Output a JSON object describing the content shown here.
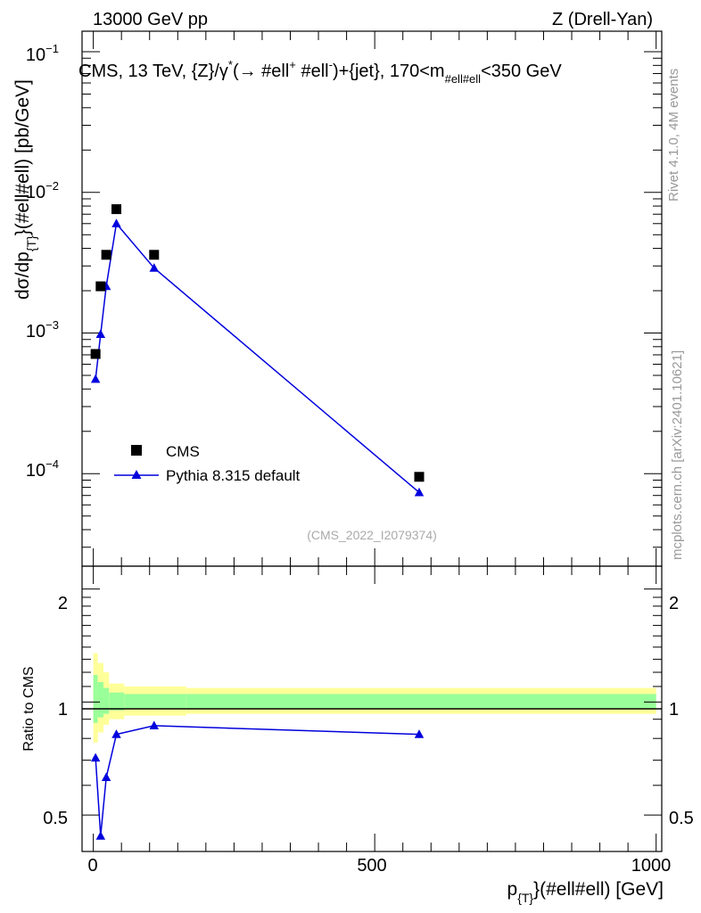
{
  "header": {
    "energy_label": "13000 GeV pp",
    "process_label": "Z (Drell-Yan)"
  },
  "side_labels": {
    "rivet": "Rivet 4.1.0,  4M events",
    "mcplots": "mcplots.cern.ch [arXiv:2401.10621]"
  },
  "analysis_id": "(CMS_2022_I2079374)",
  "main_plot": {
    "title_prefix": "CMS, 13 TeV, {Z}/γ",
    "title_sup1": "*",
    "title_mid1": "(→  #ell",
    "title_sup2": "+",
    "title_mid2": " #ell",
    "title_sup3": "-",
    "title_mid3": ")+{jet}, 170<m",
    "title_sub": "#ell#ell",
    "title_suffix": "<350 GeV",
    "ylabel_main": "dσ/dp",
    "ylabel_sub": "{T}",
    "ylabel_tail": "}(#ell#ell) [pb/GeV]",
    "ytick_labels": [
      {
        "base": "10",
        "exp": "−1"
      },
      {
        "base": "10",
        "exp": "−2"
      },
      {
        "base": "10",
        "exp": "−3"
      },
      {
        "base": "10",
        "exp": "−4"
      }
    ]
  },
  "legend": {
    "data_label": "CMS",
    "mc_label": "Pythia 8.315 default"
  },
  "ratio_plot": {
    "ylabel": "Ratio to CMS",
    "ytick_labels": [
      "2",
      "1",
      "0.5"
    ]
  },
  "x_axis": {
    "label_main": "p",
    "label_sub": "{T}",
    "label_tail": "}(#ell#ell) [GeV]",
    "tick_labels": [
      "0",
      "500",
      "1000"
    ]
  },
  "colors": {
    "mc": "#0000dd",
    "data": "#000000",
    "band_outer": "#ffff99",
    "band_inner": "#99ff99"
  },
  "chart_data": {
    "type": "scatter",
    "title": "CMS, 13 TeV, {Z}/γ*(→ #ell+ #ell-)+{jet}, 170<m_#ell#ell<350 GeV",
    "xlabel": "p_{T}}(#ell#ell) [GeV]",
    "ylabel": "dσ/dp_{T}}(#ell#ell) [pb/GeV]",
    "xlim": [
      -20,
      1010
    ],
    "ylim": [
      2.2e-05,
      0.14
    ],
    "yscale": "log",
    "x": [
      4,
      13,
      23,
      41,
      108,
      579
    ],
    "series": [
      {
        "name": "CMS",
        "marker": "square",
        "values": [
          0.00071,
          0.00215,
          0.0036,
          0.0076,
          0.0036,
          9.5e-05
        ]
      },
      {
        "name": "Pythia 8.315 default",
        "marker": "triangle",
        "line": true,
        "values": [
          0.00047,
          0.00098,
          0.00215,
          0.006,
          0.0029,
          7.35e-05
        ]
      }
    ],
    "ratio": {
      "ylabel": "Ratio to CMS",
      "ylim": [
        0.4,
        2.3
      ],
      "yscale": "log",
      "mc_ratio": [
        0.71,
        0.44,
        0.63,
        0.82,
        0.865,
        0.82
      ],
      "band_edges": [
        0,
        8,
        18,
        28,
        55,
        165,
        1000
      ],
      "band_outer_lo": [
        0.78,
        0.83,
        0.87,
        0.9,
        0.92,
        0.93
      ],
      "band_outer_hi": [
        1.35,
        1.27,
        1.2,
        1.12,
        1.1,
        1.09
      ],
      "band_inner_lo": [
        0.88,
        0.91,
        0.93,
        0.95,
        0.96,
        0.96
      ],
      "band_inner_hi": [
        1.18,
        1.13,
        1.09,
        1.06,
        1.05,
        1.05
      ]
    }
  }
}
